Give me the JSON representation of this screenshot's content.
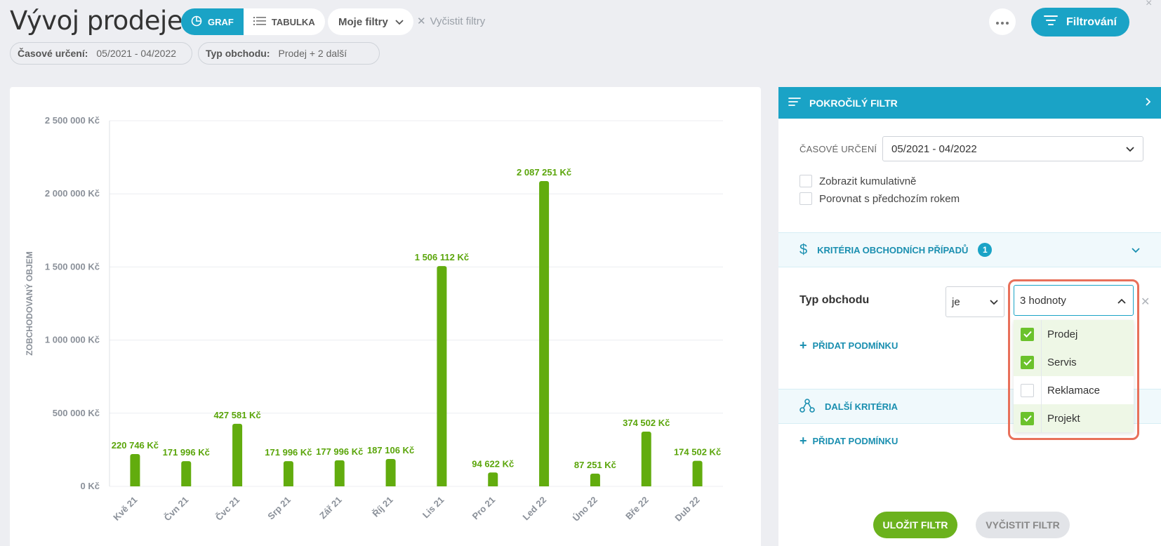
{
  "header": {
    "title": "Vývoj prodeje",
    "view_graph": "GRAF",
    "view_table": "TABULKA",
    "my_filters": "Moje filtry",
    "clear_filters": "Vyčistit filtry",
    "filter_button": "Filtrování",
    "close": "×"
  },
  "chips": [
    {
      "key": "Časové určení:",
      "value": "05/2021 - 04/2022"
    },
    {
      "key": "Typ obchodu:",
      "value": "Prodej + 2 další"
    }
  ],
  "panel": {
    "title": "POKROČILÝ FILTR",
    "time_label": "ČASOVÉ URČENÍ",
    "time_value": "05/2021 - 04/2022",
    "cumulative": "Zobrazit kumulativně",
    "compare": "Porovnat s předchozím rokem",
    "criteria_title": "KRITÉRIA OBCHODNÍCH PŘÍPADŮ",
    "criteria_count": "1",
    "deal_type_label": "Typ obchodu",
    "operator": "je",
    "values_summary": "3 hodnoty",
    "add_condition": "PŘIDAT PODMÍNKU",
    "more_criteria": "DALŠÍ KRITÉRIA",
    "add_condition_2": "PŘIDAT PODMÍNKU",
    "save": "ULOŽIT FILTR",
    "clear": "VYČISTIT FILTR",
    "options": [
      {
        "label": "Prodej",
        "checked": true
      },
      {
        "label": "Servis",
        "checked": true
      },
      {
        "label": "Reklamace",
        "checked": false
      },
      {
        "label": "Projekt",
        "checked": true
      }
    ]
  },
  "colors": {
    "accent": "#1aa3c6",
    "bar": "#62ac0e",
    "highlight": "#e8705a"
  },
  "chart_data": {
    "type": "bar",
    "ylabel": "ZOBCHODOVANÝ OBJEM",
    "ylim": [
      0,
      2500000
    ],
    "yticks": [
      0,
      500000,
      1000000,
      1500000,
      2000000,
      2500000
    ],
    "ytick_labels": [
      "0 Kč",
      "500 000 Kč",
      "1 000 000 Kč",
      "1 500 000 Kč",
      "2 000 000 Kč",
      "2 500 000 Kč"
    ],
    "categories": [
      "Kvě 21",
      "Čvn 21",
      "Čvc 21",
      "Srp 21",
      "Zář 21",
      "Říj 21",
      "Lis 21",
      "Pro 21",
      "Led 22",
      "Úno 22",
      "Bře 22",
      "Dub 22"
    ],
    "values": [
      220746,
      171996,
      427581,
      171996,
      177996,
      187106,
      1506112,
      94622,
      2087251,
      87251,
      374502,
      174502
    ],
    "value_labels": [
      "220 746 Kč",
      "171 996 Kč",
      "427 581 Kč",
      "171 996 Kč",
      "177 996 Kč",
      "187 106 Kč",
      "1 506 112 Kč",
      "94 622 Kč",
      "2 087 251 Kč",
      "87 251 Kč",
      "374 502 Kč",
      "174 502 Kč"
    ]
  }
}
